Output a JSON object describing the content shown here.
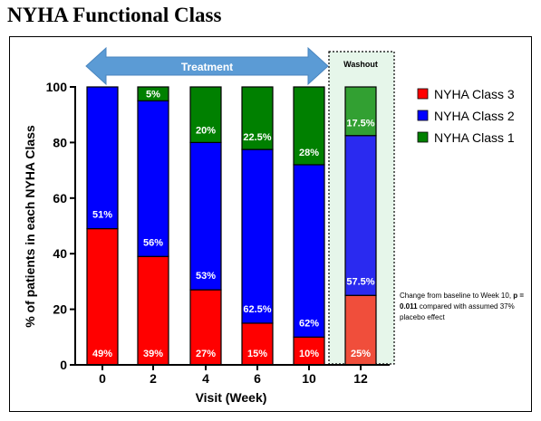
{
  "page": {
    "title": "NYHA Functional Class"
  },
  "chart_data": {
    "type": "bar",
    "stacked": true,
    "categories": [
      "0",
      "2",
      "4",
      "6",
      "10",
      "12"
    ],
    "series": [
      {
        "name": "NYHA Class 3",
        "color": "#ff0000",
        "values": [
          49,
          39,
          27,
          15,
          10,
          25
        ],
        "labels": [
          "49%",
          "39%",
          "27%",
          "15%",
          "10%",
          "25%"
        ]
      },
      {
        "name": "NYHA Class 2",
        "color": "#0000ff",
        "values": [
          51,
          56,
          53,
          62.5,
          62,
          57.5
        ],
        "labels": [
          "51%",
          "56%",
          "53%",
          "62.5%",
          "62%",
          "57.5%"
        ]
      },
      {
        "name": "NYHA Class 1",
        "color": "#008000",
        "values": [
          0,
          5,
          20,
          22.5,
          28,
          17.5
        ],
        "labels": [
          "",
          "5%",
          "20%",
          "22.5%",
          "28%",
          "17.5%"
        ]
      }
    ],
    "washout_colors": {
      "NYHA Class 3": "#f04e3b",
      "NYHA Class 2": "#2a2af0",
      "NYHA Class 1": "#32a032"
    },
    "xlabel": "Visit (Week)",
    "ylabel": "% of patients in each NYHA Class",
    "ylim": [
      0,
      100
    ],
    "yticks": [
      "0",
      "20",
      "40",
      "60",
      "80",
      "100"
    ],
    "legend_position": "right",
    "legend_order": [
      "NYHA Class 3",
      "NYHA Class 2",
      "NYHA Class 1"
    ],
    "treatment_label": "Treatment",
    "treatment_color": "#5b9bd5",
    "washout_label": "Washout",
    "washout_category": "12",
    "annotation": {
      "part1": "Change from baseline to Week 10, ",
      "bold": "p = 0.011",
      "part2": " compared with assumed 37% placebo effect"
    }
  }
}
